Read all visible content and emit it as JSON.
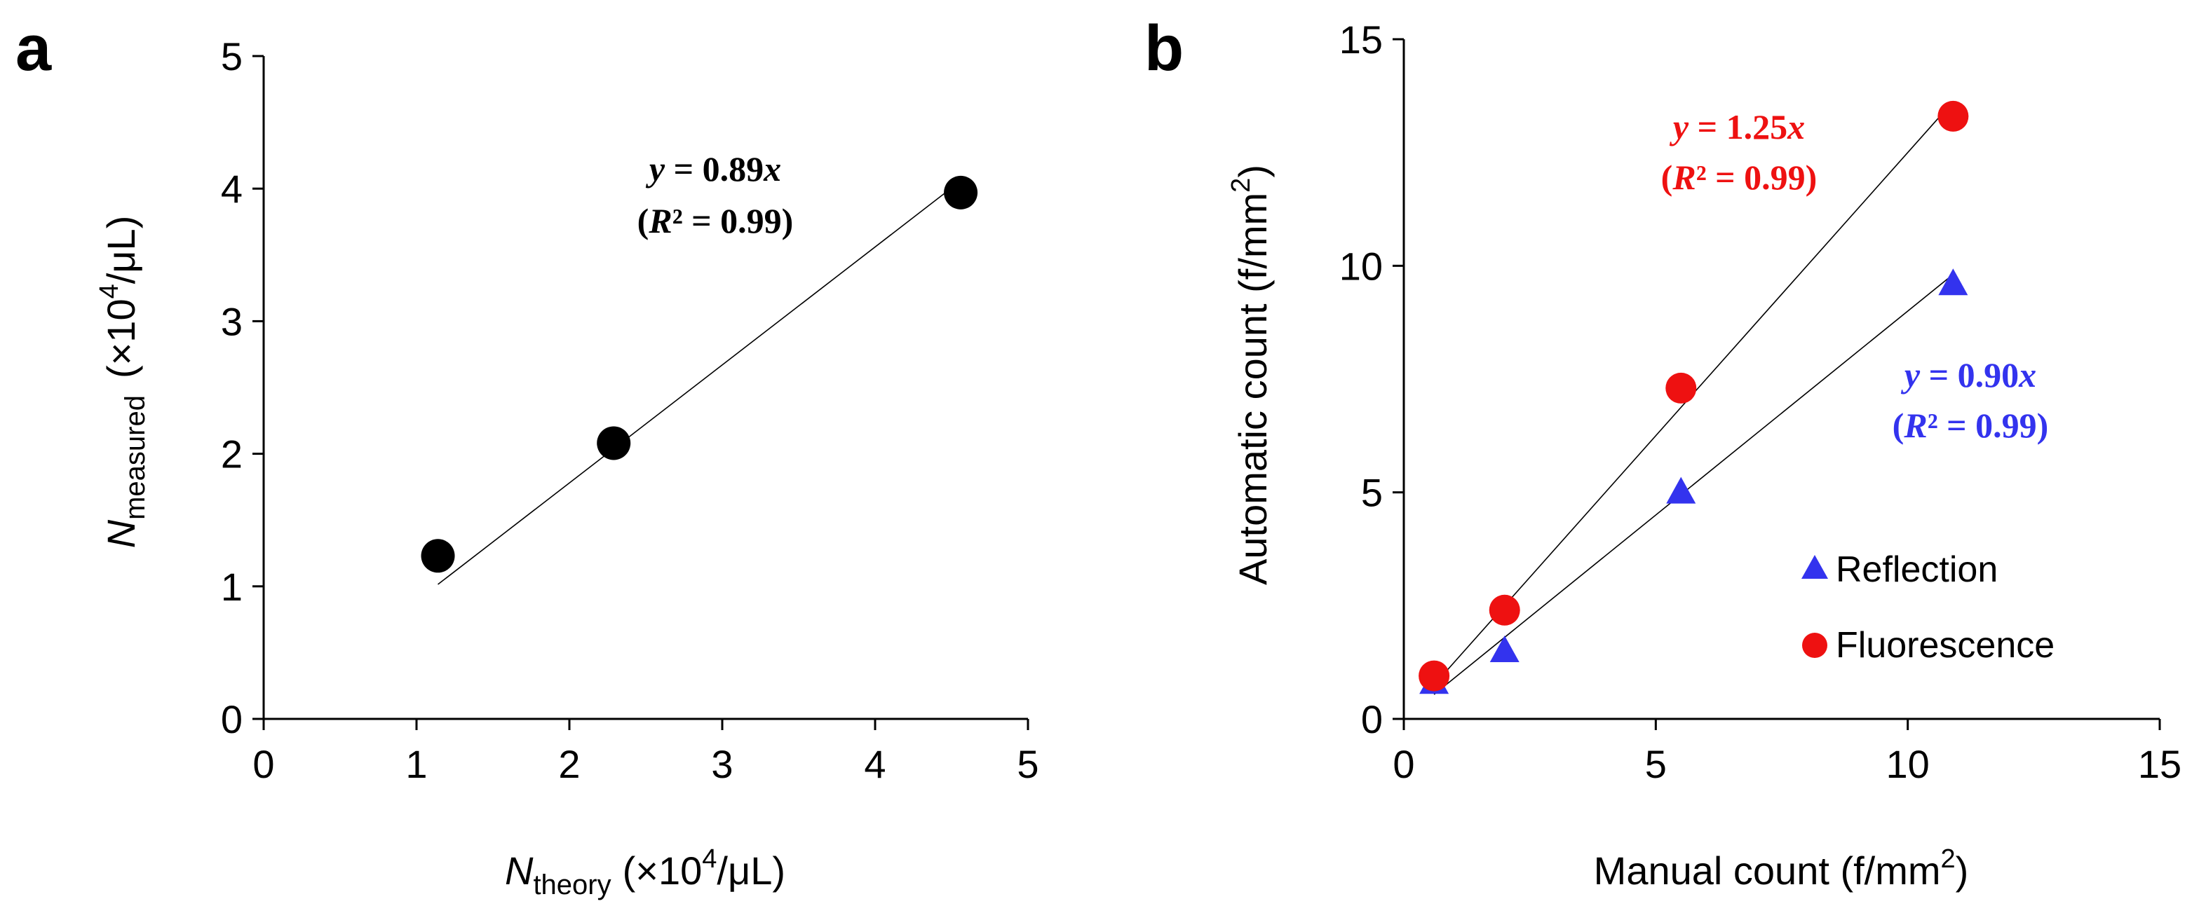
{
  "panels": {
    "a": {
      "label": "a"
    },
    "b": {
      "label": "b"
    }
  },
  "chart_data": [
    {
      "panel": "a",
      "type": "scatter",
      "xlabel": {
        "main": "N",
        "sub": "theory",
        "unit_pre": "(×10",
        "unit_sup": "4",
        "unit_post": "/μL)"
      },
      "ylabel": {
        "main": "N",
        "sub": "measured",
        "unit_pre": "(×10",
        "unit_sup": "4",
        "unit_post": "/μL)"
      },
      "xlim": [
        0,
        5
      ],
      "ylim": [
        0,
        5
      ],
      "xticks": [
        "0",
        "1",
        "2",
        "3",
        "4",
        "5"
      ],
      "yticks": [
        "0",
        "1",
        "2",
        "3",
        "4",
        "5"
      ],
      "grid": false,
      "series": [
        {
          "color": "#000000",
          "marker": "circle",
          "x": [
            1.14,
            2.29,
            4.56
          ],
          "y": [
            1.23,
            2.08,
            3.97
          ]
        }
      ],
      "fit_lines": [
        {
          "slope": 0.89,
          "x_range": [
            1.14,
            4.56
          ],
          "color": "#000000"
        }
      ],
      "annotations": [
        {
          "equation_pre": "y",
          "equation_mid": " = 0.89",
          "equation_post": "x",
          "r2_pre": "(",
          "r2_r": "R",
          "r2_post": "² = 0.99)",
          "color": "#000000"
        }
      ]
    },
    {
      "panel": "b",
      "type": "scatter",
      "xlabel": {
        "text": "Manual count (f/mm",
        "sup": "2",
        "post": ")"
      },
      "ylabel": {
        "text": "Automatic count (f/mm",
        "sup": "2",
        "post": ")"
      },
      "xlim": [
        0,
        15
      ],
      "ylim": [
        0,
        15
      ],
      "xticks": [
        "0",
        "5",
        "10",
        "15"
      ],
      "yticks": [
        "0",
        "5",
        "10",
        "15"
      ],
      "grid": false,
      "legend_position": "bottom-right",
      "series": [
        {
          "name": "Reflection",
          "color": "#3333ee",
          "marker": "triangle",
          "x": [
            0.6,
            2.0,
            5.5,
            10.9
          ],
          "y": [
            0.8,
            1.5,
            5.0,
            9.6
          ]
        },
        {
          "name": "Fluorescence",
          "color": "#ee1111",
          "marker": "circle",
          "x": [
            0.6,
            2.0,
            5.5,
            10.9
          ],
          "y": [
            0.95,
            2.4,
            7.3,
            13.3
          ]
        }
      ],
      "fit_lines": [
        {
          "slope": 1.25,
          "x_range": [
            0.6,
            10.9
          ],
          "color": "#000000"
        },
        {
          "slope": 0.9,
          "x_range": [
            0.6,
            10.9
          ],
          "color": "#000000"
        }
      ],
      "annotations": [
        {
          "equation_pre": "y",
          "equation_mid": " = 1.25",
          "equation_post": "x",
          "r2_pre": "(",
          "r2_r": "R",
          "r2_post": "² = 0.99)",
          "color": "#ee1111"
        },
        {
          "equation_pre": "y",
          "equation_mid": " = 0.90",
          "equation_post": "x",
          "r2_pre": "(",
          "r2_r": "R",
          "r2_post": "² = 0.99)",
          "color": "#3333ee"
        }
      ]
    }
  ]
}
